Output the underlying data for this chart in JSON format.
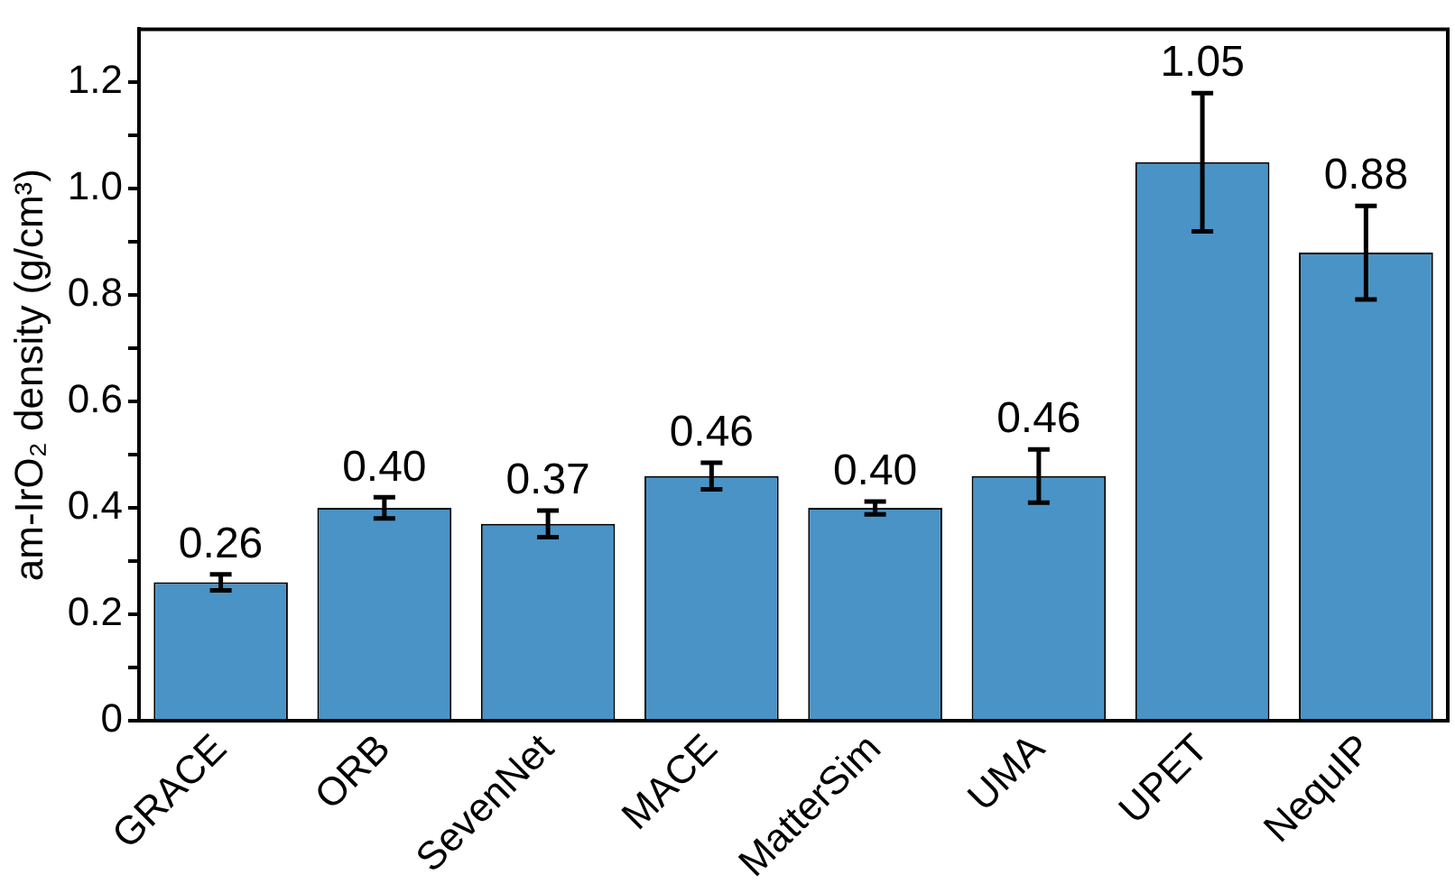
{
  "chart_data": {
    "type": "bar",
    "ylabel": "am-IrO₂ density (g/cm³)",
    "categories": [
      "GRACE",
      "ORB",
      "SevenNet",
      "MACE",
      "MatterSim",
      "UMA",
      "UPET",
      "NequIP"
    ],
    "values": [
      0.26,
      0.4,
      0.37,
      0.46,
      0.4,
      0.46,
      1.05,
      0.88
    ],
    "errors": [
      0.015,
      0.02,
      0.025,
      0.025,
      0.012,
      0.05,
      0.13,
      0.088
    ],
    "value_labels": [
      "0.26",
      "0.40",
      "0.37",
      "0.46",
      "0.40",
      "0.46",
      "1.05",
      "0.88"
    ],
    "color": "#4a93c6",
    "grid": false,
    "legend": false,
    "ylim": [
      0,
      1.3
    ],
    "yticks": [
      0,
      {
        "value": 0.1,
        "label": null
      },
      0.2,
      {
        "value": 0.3,
        "label": null
      },
      0.4,
      {
        "value": 0.5,
        "label": null
      },
      0.6,
      {
        "value": 0.7,
        "label": null
      },
      0.8,
      {
        "value": 0.9,
        "label": null
      },
      {
        "value": 1,
        "label": "1.0"
      },
      {
        "value": 1.1,
        "label": null
      },
      1.2
    ]
  }
}
